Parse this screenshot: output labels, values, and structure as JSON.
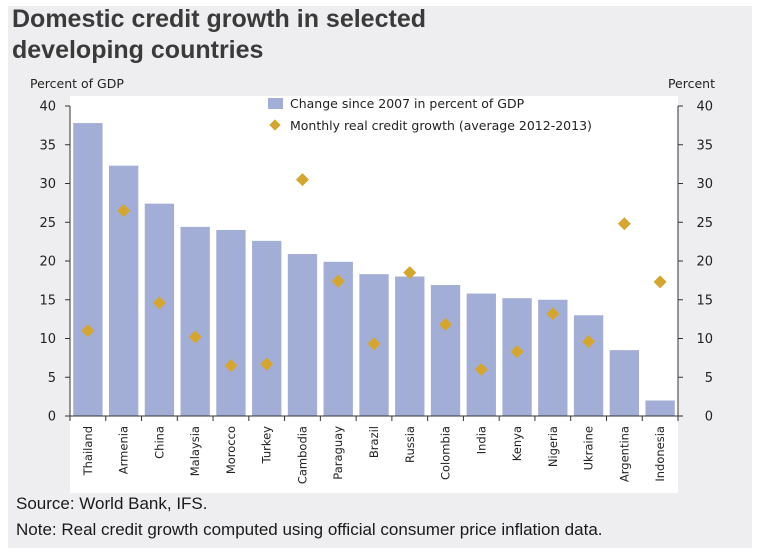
{
  "title_line1": "Domestic credit growth in selected",
  "title_line2": "developing countries",
  "source": "Source: World Bank, IFS.",
  "note": "Note: Real credit growth computed using official consumer price inflation data.",
  "colors": {
    "bar": "#a3aed6",
    "diamond": "#d4a631",
    "axis": "#333333",
    "frame_bg": "#eeeef0",
    "plot_bg": "#ffffff"
  },
  "chart_data": {
    "type": "bar",
    "categories": [
      "Thailand",
      "Armenia",
      "China",
      "Malaysia",
      "Morocco",
      "Turkey",
      "Cambodia",
      "Paraguay",
      "Brazil",
      "Russia",
      "Colombia",
      "India",
      "Kenya",
      "Nigeria",
      "Ukraine",
      "Argentina",
      "Indonesia"
    ],
    "series": [
      {
        "name": "Change since 2007 in percent of GDP",
        "type": "bar",
        "axis": "left",
        "values": [
          37.8,
          32.3,
          27.4,
          24.4,
          24.0,
          22.6,
          20.9,
          19.9,
          18.3,
          18.0,
          16.9,
          15.8,
          15.2,
          15.0,
          13.0,
          8.5,
          2.0
        ]
      },
      {
        "name": "Monthly real credit growth (average 2012-2013)",
        "type": "scatter",
        "marker": "diamond",
        "axis": "right",
        "values": [
          11.0,
          26.5,
          14.6,
          10.2,
          6.5,
          6.7,
          30.5,
          17.4,
          9.3,
          18.5,
          11.8,
          6.0,
          8.3,
          13.2,
          9.6,
          24.8,
          17.3
        ]
      }
    ],
    "y_left_label": "Percent of GDP",
    "y_right_label": "Percent",
    "ylim": [
      0,
      40
    ],
    "y_ticks": [
      0,
      5,
      10,
      15,
      20,
      25,
      30,
      35,
      40
    ],
    "grid": false,
    "legend_position": "top-right"
  }
}
